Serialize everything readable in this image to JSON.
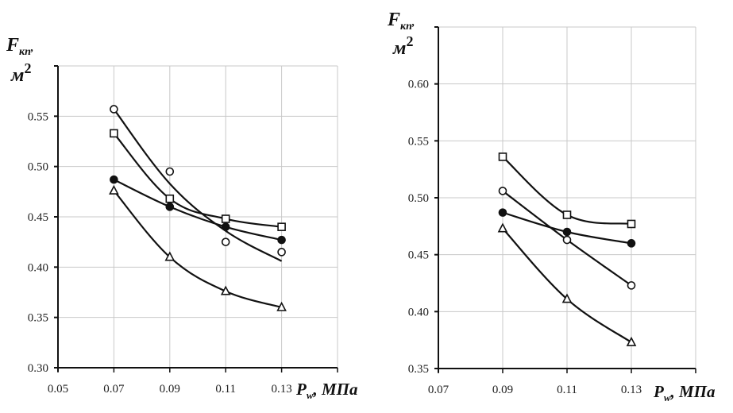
{
  "chart_data": [
    {
      "type": "line",
      "title": "",
      "ylabel_main": "F",
      "ylabel_sub": "кп",
      "ylabel_unit": "м",
      "ylabel_unit_sup": "2",
      "xlabel_main": "P",
      "xlabel_sub": "w",
      "xlabel_unit": ", МПа",
      "xlim": [
        0.05,
        0.15
      ],
      "ylim": [
        0.3,
        0.6
      ],
      "x_ticks": [
        0.05,
        0.07,
        0.09,
        0.11,
        0.13,
        0.15
      ],
      "x_tick_labels": [
        "0.05",
        "0.07",
        "0.09",
        "0.11",
        "0.13",
        ""
      ],
      "y_ticks": [
        0.3,
        0.35,
        0.4,
        0.45,
        0.5,
        0.55,
        0.6
      ],
      "y_tick_labels": [
        "0.30",
        "0.35",
        "0.40",
        "0.45",
        "0.50",
        "0.55",
        ""
      ],
      "grid": true,
      "x": [
        0.07,
        0.09,
        0.11,
        0.13
      ],
      "series": [
        {
          "name": "open-circle",
          "marker": "circle-open",
          "values": [
            0.557,
            0.495,
            0.425,
            0.415
          ],
          "trend": [
            0.557,
            0.483,
            0.436,
            0.406
          ]
        },
        {
          "name": "open-square",
          "marker": "square-open",
          "values": [
            0.533,
            0.468,
            0.448,
            0.44
          ],
          "trend": [
            0.533,
            0.468,
            0.448,
            0.44
          ]
        },
        {
          "name": "filled-circle",
          "marker": "circle-filled",
          "values": [
            0.487,
            0.46,
            0.44,
            0.427
          ],
          "trend": [
            0.487,
            0.46,
            0.44,
            0.427
          ]
        },
        {
          "name": "open-triangle",
          "marker": "triangle-open",
          "values": [
            0.476,
            0.41,
            0.376,
            0.36
          ],
          "trend": [
            0.476,
            0.41,
            0.376,
            0.36
          ]
        }
      ]
    },
    {
      "type": "line",
      "title": "",
      "ylabel_main": "F",
      "ylabel_sub": "кп",
      "ylabel_unit": "м",
      "ylabel_unit_sup": "2",
      "xlabel_main": "P",
      "xlabel_sub": "w",
      "xlabel_unit": ", МПа",
      "xlim": [
        0.07,
        0.15
      ],
      "ylim": [
        0.35,
        0.65
      ],
      "x_ticks": [
        0.07,
        0.09,
        0.11,
        0.13,
        0.15
      ],
      "x_tick_labels": [
        "0.07",
        "0.09",
        "0.11",
        "0.13",
        ""
      ],
      "y_ticks": [
        0.35,
        0.4,
        0.45,
        0.5,
        0.55,
        0.6,
        0.65
      ],
      "y_tick_labels": [
        "0.35",
        "0.40",
        "0.45",
        "0.50",
        "0.55",
        "0.60",
        ""
      ],
      "grid": true,
      "x": [
        0.09,
        0.11,
        0.13
      ],
      "series": [
        {
          "name": "open-square",
          "marker": "square-open",
          "values": [
            0.536,
            0.485,
            0.477
          ],
          "trend": [
            0.536,
            0.485,
            0.477
          ]
        },
        {
          "name": "open-circle",
          "marker": "circle-open",
          "values": [
            0.506,
            0.463,
            0.423
          ],
          "trend": [
            0.506,
            0.463,
            0.423
          ]
        },
        {
          "name": "filled-circle",
          "marker": "circle-filled",
          "values": [
            0.487,
            0.47,
            0.46
          ],
          "trend": [
            0.487,
            0.47,
            0.46
          ]
        },
        {
          "name": "open-triangle",
          "marker": "triangle-open",
          "values": [
            0.473,
            0.411,
            0.373
          ],
          "trend": [
            0.473,
            0.411,
            0.373
          ]
        }
      ]
    }
  ]
}
